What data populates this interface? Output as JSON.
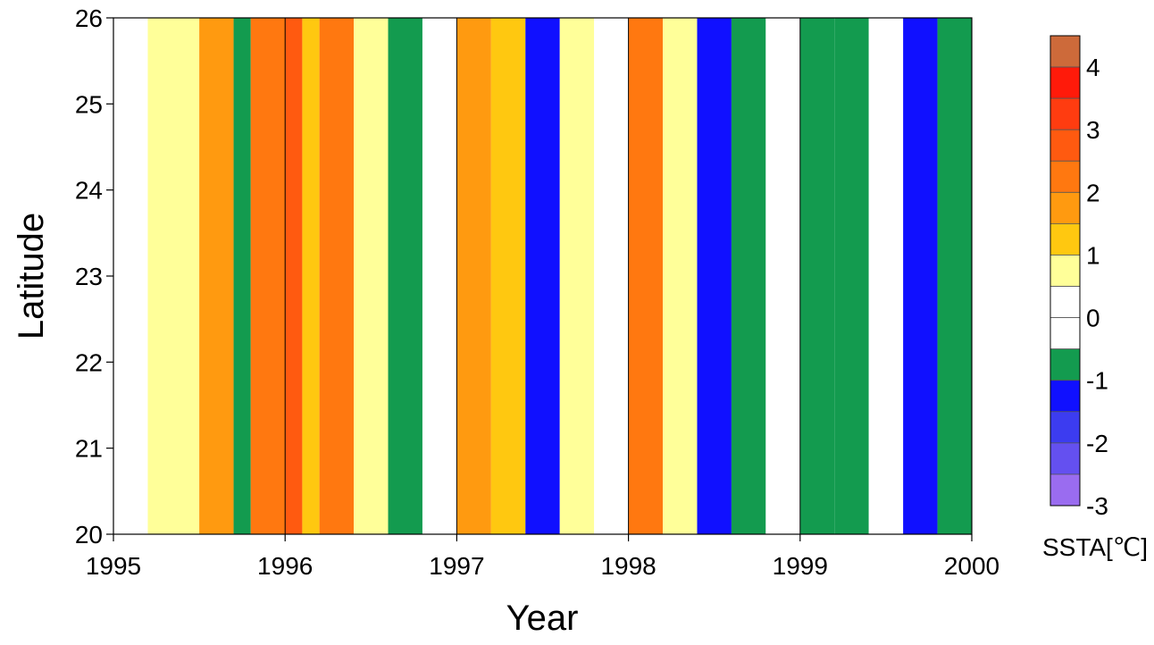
{
  "chart_data": {
    "type": "heatmap",
    "xlabel": "Year",
    "ylabel": "Latitude",
    "x_ticks": [
      "1995",
      "1996",
      "1997",
      "1998",
      "1999",
      "2000"
    ],
    "y_ticks": [
      "20",
      "21",
      "22",
      "23",
      "24",
      "25",
      "26"
    ],
    "xlim": [
      1995,
      2000
    ],
    "ylim": [
      20,
      26
    ],
    "vertical_gridlines_at": [
      1996,
      1997,
      1998,
      1999
    ],
    "colorbar": {
      "label": "SSTA[℃]",
      "tick_labels": [
        "4",
        "3",
        "2",
        "1",
        "0",
        "-1",
        "-2",
        "-3"
      ],
      "levels": [
        4.5,
        4,
        3.5,
        3,
        2.5,
        2,
        1.5,
        1,
        0.5,
        0,
        -0.5,
        -1,
        -1.5,
        -2,
        -2.5,
        -3
      ],
      "colors": [
        "#cd6a3a",
        "#ff1a0a",
        "#ff3c10",
        "#ff5a10",
        "#ff7810",
        "#ff9a10",
        "#ffc810",
        "#ffff99",
        "#ffffff",
        "#ffffff",
        "#139b4f",
        "#1010ff",
        "#3c3cf0",
        "#6450f0",
        "#9a6cf0"
      ]
    },
    "bands": [
      {
        "x": [
          1995.0,
          1995.2
        ],
        "anomaly": 0.3
      },
      {
        "x": [
          1995.2,
          1995.5
        ],
        "anomaly": 0.6
      },
      {
        "x": [
          1995.5,
          1995.7
        ],
        "anomaly": 1.8
      },
      {
        "x": [
          1995.7,
          1995.8
        ],
        "anomaly": -0.6
      },
      {
        "x": [
          1995.8,
          1996.0
        ],
        "anomaly": 2.2
      },
      {
        "x": [
          1996.0,
          1996.1
        ],
        "anomaly": 2.6
      },
      {
        "x": [
          1996.1,
          1996.2
        ],
        "anomaly": 1.4
      },
      {
        "x": [
          1996.2,
          1996.4
        ],
        "anomaly": 2.3
      },
      {
        "x": [
          1996.4,
          1996.6
        ],
        "anomaly": 0.7
      },
      {
        "x": [
          1996.6,
          1996.8
        ],
        "anomaly": -0.7
      },
      {
        "x": [
          1996.8,
          1997.0
        ],
        "anomaly": 0.4
      },
      {
        "x": [
          1997.0,
          1997.2
        ],
        "anomaly": 1.7
      },
      {
        "x": [
          1997.2,
          1997.4
        ],
        "anomaly": 1.2
      },
      {
        "x": [
          1997.4,
          1997.6
        ],
        "anomaly": -1.2
      },
      {
        "x": [
          1997.6,
          1997.8
        ],
        "anomaly": 0.9
      },
      {
        "x": [
          1997.8,
          1998.0
        ],
        "anomaly": 0.5
      },
      {
        "x": [
          1998.0,
          1998.2
        ],
        "anomaly": 2.1
      },
      {
        "x": [
          1998.2,
          1998.4
        ],
        "anomaly": 0.8
      },
      {
        "x": [
          1998.4,
          1998.6
        ],
        "anomaly": -1.1
      },
      {
        "x": [
          1998.6,
          1998.8
        ],
        "anomaly": -0.6
      },
      {
        "x": [
          1998.8,
          1999.0
        ],
        "anomaly": 0.3
      },
      {
        "x": [
          1999.0,
          1999.2
        ],
        "anomaly": -0.8
      },
      {
        "x": [
          1999.2,
          1999.4
        ],
        "anomaly": -0.7
      },
      {
        "x": [
          1999.4,
          1999.6
        ],
        "anomaly": 0.4
      },
      {
        "x": [
          1999.6,
          1999.8
        ],
        "anomaly": -1.2
      },
      {
        "x": [
          1999.8,
          2000.0
        ],
        "anomaly": -0.9
      }
    ]
  }
}
